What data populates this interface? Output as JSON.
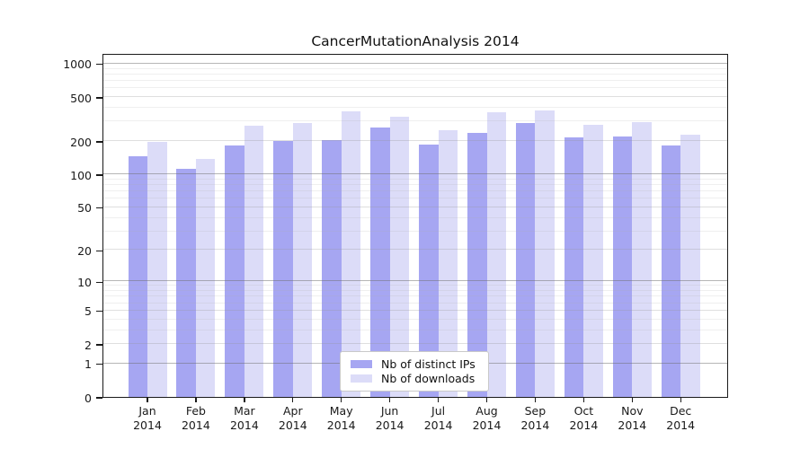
{
  "chart_data": {
    "type": "bar",
    "title": "CancerMutationAnalysis 2014",
    "y_scale": "log10(1 + y)",
    "grid": "horizontal",
    "legend_position": "inside-bottom-center",
    "months": [
      "Jan",
      "Feb",
      "Mar",
      "Apr",
      "May",
      "Jun",
      "Jul",
      "Aug",
      "Sep",
      "Oct",
      "Nov",
      "Dec"
    ],
    "year": "2014",
    "y_ticks": [
      0,
      1,
      2,
      5,
      10,
      20,
      50,
      100,
      200,
      500,
      1000
    ],
    "ylim": [
      0,
      1240
    ],
    "series": [
      {
        "name": "Nb of distinct IPs",
        "color": "#a6a6f2",
        "values": [
          145,
          112,
          181,
          201,
          204,
          265,
          185,
          238,
          291,
          216,
          222,
          182
        ]
      },
      {
        "name": "Nb of downloads",
        "color": "#dcdcf8",
        "values": [
          195,
          138,
          275,
          289,
          370,
          333,
          252,
          362,
          380,
          282,
          295,
          227
        ]
      }
    ]
  }
}
